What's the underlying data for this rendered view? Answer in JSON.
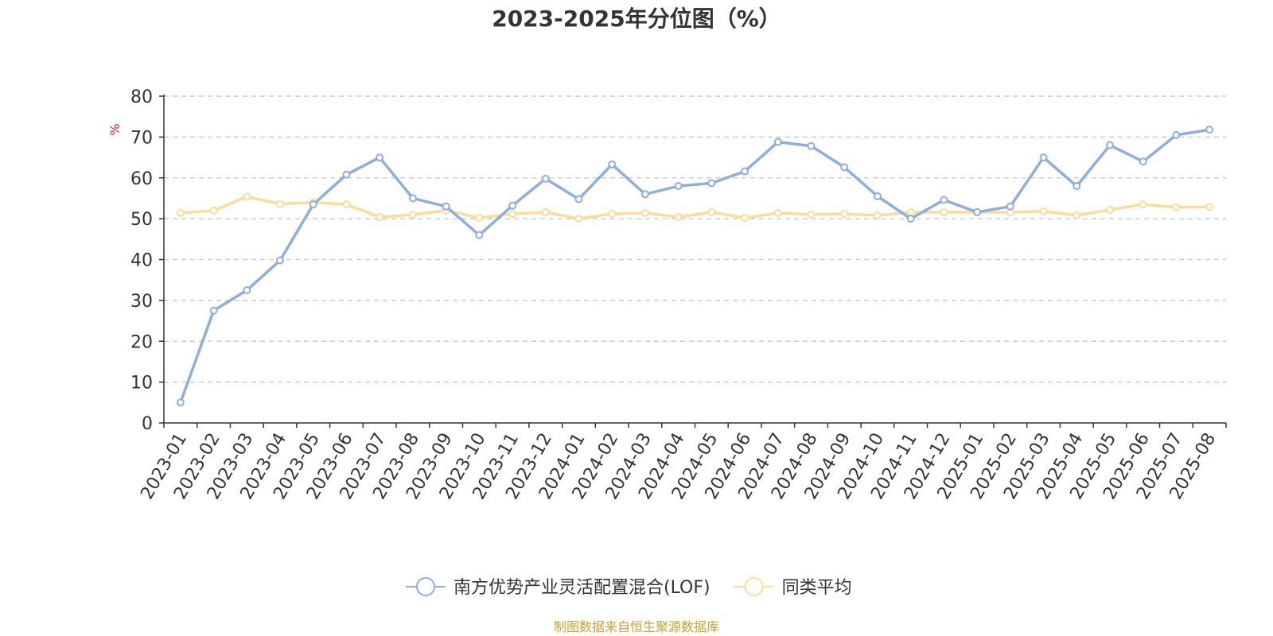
{
  "chart_data": {
    "type": "line",
    "title": "2023-2025年分位图（%）",
    "ylabel": "%",
    "ylim": [
      0,
      80
    ],
    "yticks": [
      0,
      10,
      20,
      30,
      40,
      50,
      60,
      70,
      80
    ],
    "grid": "horizontal dashed",
    "legend_position": "bottom",
    "categories": [
      "2023-01",
      "2023-02",
      "2023-03",
      "2023-04",
      "2023-05",
      "2023-06",
      "2023-07",
      "2023-08",
      "2023-09",
      "2023-10",
      "2023-11",
      "2023-12",
      "2024-01",
      "2024-02",
      "2024-03",
      "2024-04",
      "2024-05",
      "2024-06",
      "2024-07",
      "2024-08",
      "2024-09",
      "2024-10",
      "2024-11",
      "2024-12",
      "2025-01",
      "2025-02",
      "2025-03",
      "2025-04",
      "2025-05",
      "2025-06",
      "2025-07",
      "2025-08"
    ],
    "series": [
      {
        "name": "南方优势产业灵活配置混合(LOF)",
        "color": "#8eaedb",
        "values": [
          5,
          27.5,
          32.5,
          39.8,
          53.5,
          60.8,
          65,
          55,
          53,
          46,
          53.2,
          59.8,
          54.8,
          63.3,
          56,
          58,
          58.7,
          61.6,
          68.8,
          67.8,
          62.6,
          55.5,
          50,
          54.6,
          51.6,
          53,
          65,
          58,
          68,
          64,
          70.5,
          71.8
        ]
      },
      {
        "name": "同类平均",
        "color": "#fcdc98",
        "values": [
          51.4,
          52,
          55.4,
          53.6,
          54,
          53.5,
          50.4,
          51,
          52,
          50.2,
          51.2,
          51.6,
          50,
          51.2,
          51.4,
          50.4,
          51.6,
          50.2,
          51.4,
          51,
          51.2,
          50.8,
          51.6,
          51.6,
          51.6,
          51.6,
          51.8,
          50.8,
          52.2,
          53.5,
          52.8,
          52.9
        ]
      }
    ]
  },
  "source": {
    "text": "制图数据来自恒生聚源数据库",
    "color": "#c8a233"
  },
  "axis_colors": {
    "axis": "#333333",
    "grid": "#cccccc",
    "unit": "#e02020"
  }
}
